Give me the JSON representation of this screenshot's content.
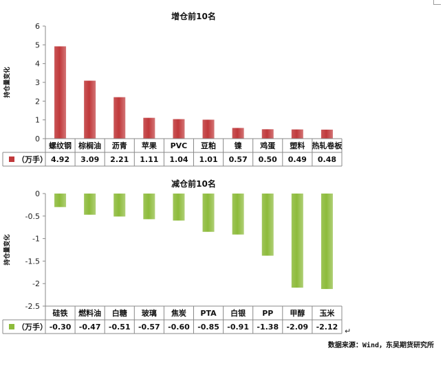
{
  "chart_data": [
    {
      "type": "bar",
      "title": "增仓前10名",
      "ylabel": "持仓量变化",
      "categories": [
        "螺纹钢",
        "棕榈油",
        "沥青",
        "苹果",
        "PVC",
        "豆粕",
        "镍",
        "鸡蛋",
        "塑料",
        "热轧卷板"
      ],
      "series": [
        {
          "name": "（万手）",
          "values": [
            4.92,
            3.09,
            2.21,
            1.11,
            1.04,
            1.01,
            0.57,
            0.5,
            0.49,
            0.48
          ]
        }
      ],
      "value_labels": [
        "4.92",
        "3.09",
        "2.21",
        "1.11",
        "1.04",
        "1.01",
        "0.57",
        "0.50",
        "0.49",
        "0.48"
      ],
      "ylim": [
        0,
        6
      ],
      "yticks": [
        "0",
        "1",
        "2",
        "3",
        "4",
        "5",
        "6"
      ],
      "color": "#c0393b",
      "grid": false,
      "legend": "data-table"
    },
    {
      "type": "bar",
      "title": "减仓前10名",
      "ylabel": "持仓量变化",
      "categories": [
        "硅铁",
        "燃料油",
        "白糖",
        "玻璃",
        "焦炭",
        "PTA",
        "白银",
        "PP",
        "甲醇",
        "玉米"
      ],
      "series": [
        {
          "name": "（万手）",
          "values": [
            -0.3,
            -0.47,
            -0.51,
            -0.57,
            -0.6,
            -0.85,
            -0.91,
            -1.38,
            -2.09,
            -2.12
          ]
        }
      ],
      "value_labels": [
        "-0.30",
        "-0.47",
        "-0.51",
        "-0.57",
        "-0.60",
        "-0.85",
        "-0.91",
        "-1.38",
        "-2.09",
        "-2.12"
      ],
      "ylim": [
        -2.5,
        0
      ],
      "yticks": [
        "0",
        "-0.5",
        "-1",
        "-1.5",
        "-2",
        "-2.5"
      ],
      "color": "#8dbb3b",
      "grid": false,
      "legend": "data-table"
    }
  ],
  "source": "数据来源：Wind，东吴期货研究所",
  "return_mark": "↵"
}
